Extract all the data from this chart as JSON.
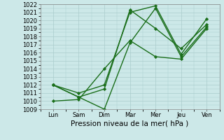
{
  "x_labels": [
    "Lun",
    "Sam",
    "Dim",
    "Mar",
    "Mer",
    "Jeu",
    "Ven"
  ],
  "x_positions": [
    0,
    1,
    2,
    3,
    4,
    5,
    6
  ],
  "series": [
    [
      1012.0,
      1010.5,
      1009.0,
      1017.2,
      1021.5,
      1015.5,
      1019.2
    ],
    [
      1012.0,
      1011.0,
      1012.0,
      1021.0,
      1021.8,
      1015.8,
      1020.2
    ],
    [
      1012.0,
      1010.5,
      1011.5,
      1021.3,
      1019.0,
      1016.5,
      1019.5
    ],
    [
      1010.0,
      1010.2,
      1014.0,
      1017.5,
      1015.5,
      1015.2,
      1019.0
    ]
  ],
  "line_color": "#1a6e1a",
  "marker": "D",
  "markersize": 2.2,
  "linewidth": 1.0,
  "ylim": [
    1009,
    1022
  ],
  "yticks": [
    1009,
    1010,
    1011,
    1012,
    1013,
    1014,
    1015,
    1016,
    1017,
    1018,
    1019,
    1020,
    1021,
    1022
  ],
  "xlabel": "Pression niveau de la mer( hPa )",
  "background_color": "#cce8e8",
  "grid_color": "#aacccc",
  "xlabel_fontsize": 7.5,
  "tick_fontsize": 6.0,
  "fig_width": 3.2,
  "fig_height": 2.0,
  "dpi": 100
}
